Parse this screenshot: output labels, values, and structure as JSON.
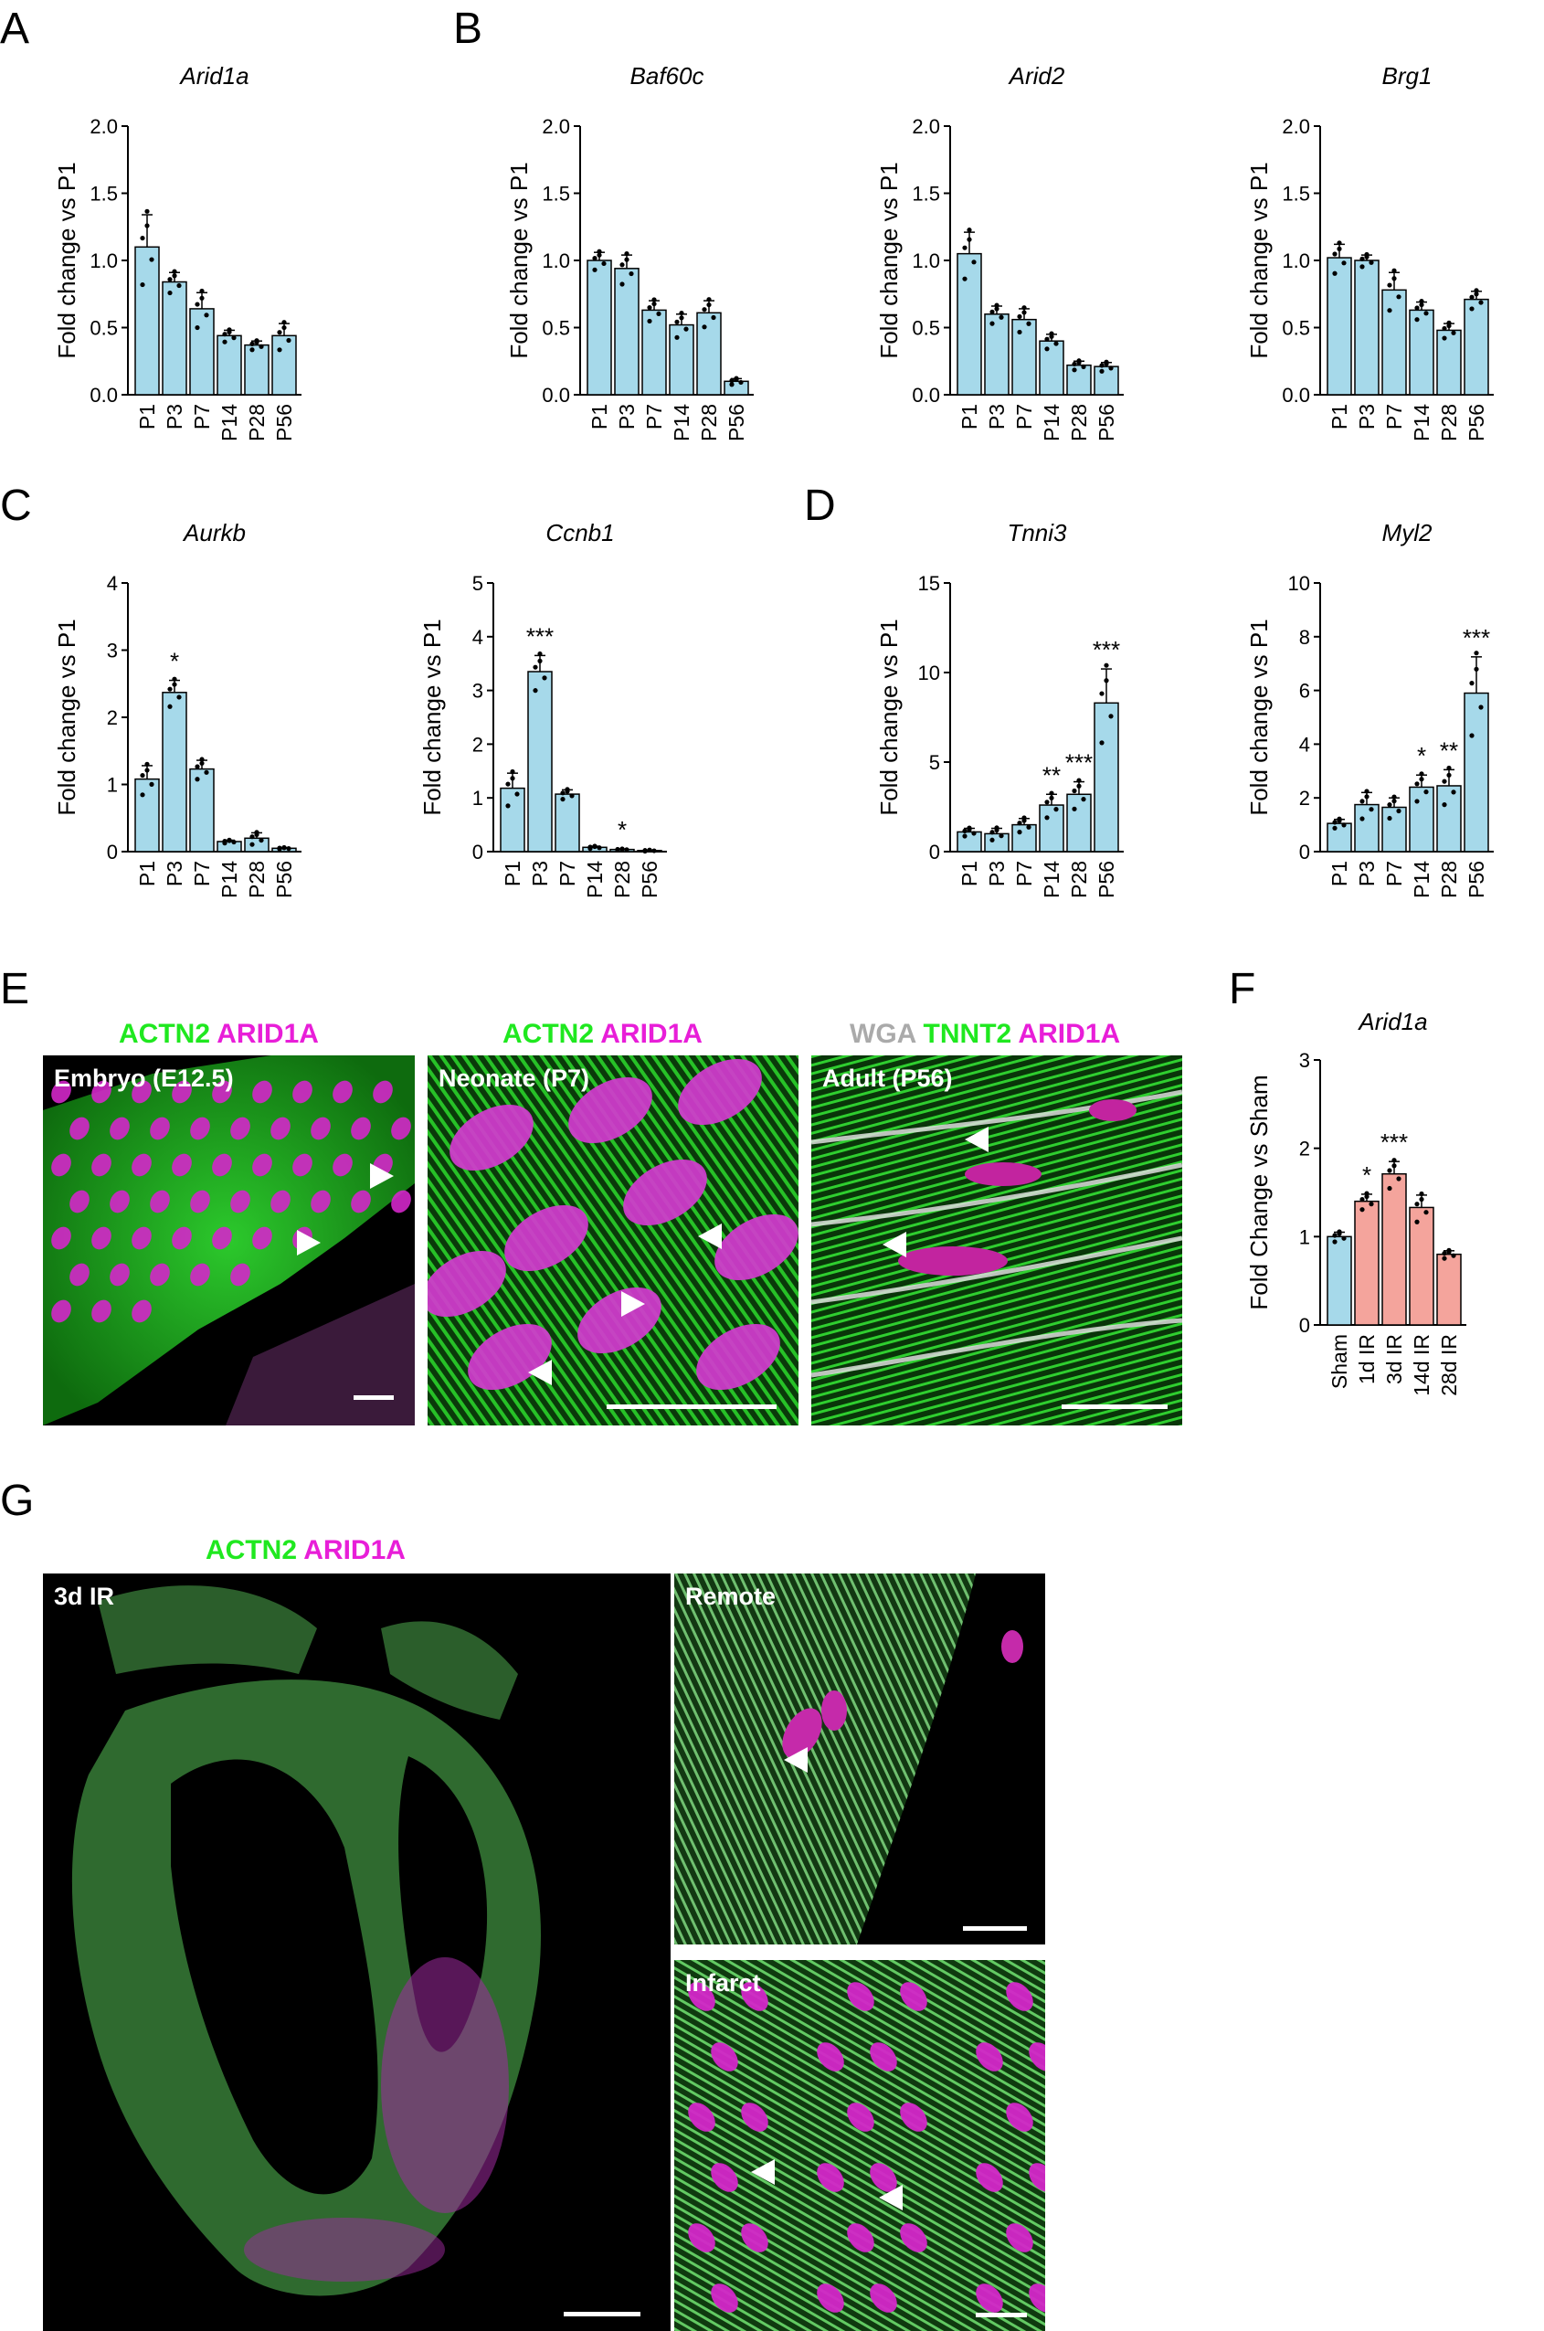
{
  "panel_letters": [
    "A",
    "B",
    "C",
    "D",
    "E",
    "F",
    "G"
  ],
  "colors": {
    "bar_blue": "#a6d9ea",
    "bar_red": "#f4a49c",
    "green": "#1fe81f",
    "magenta": "#e81ed8",
    "gray": "#aaaaaa"
  },
  "chart_data": [
    {
      "id": "A1",
      "type": "bar",
      "title": "Arid1a",
      "ylabel": "Fold change vs P1",
      "categories": [
        "P1",
        "P3",
        "P7",
        "P14",
        "P28",
        "P56"
      ],
      "values": [
        1.1,
        0.84,
        0.64,
        0.44,
        0.37,
        0.44
      ],
      "errors": [
        0.24,
        0.07,
        0.12,
        0.04,
        0.03,
        0.09
      ],
      "ylim": [
        0,
        2
      ],
      "yticks": [
        "0.0",
        "0.5",
        "1.0",
        "1.5",
        "2.0"
      ],
      "significance": [
        "",
        "",
        "",
        "",
        "",
        ""
      ],
      "bar_color": "#a6d9ea"
    },
    {
      "id": "B1",
      "type": "bar",
      "title": "Baf60c",
      "ylabel": "Fold change vs P1",
      "categories": [
        "P1",
        "P3",
        "P7",
        "P14",
        "P28",
        "P56"
      ],
      "values": [
        1.0,
        0.94,
        0.63,
        0.52,
        0.61,
        0.1
      ],
      "errors": [
        0.06,
        0.1,
        0.07,
        0.08,
        0.09,
        0.02
      ],
      "ylim": [
        0,
        2
      ],
      "yticks": [
        "0.0",
        "0.5",
        "1.0",
        "1.5",
        "2.0"
      ],
      "significance": [
        "",
        "",
        "",
        "",
        "",
        ""
      ],
      "bar_color": "#a6d9ea"
    },
    {
      "id": "B2",
      "type": "bar",
      "title": "Arid2",
      "ylabel": "Fold change vs P1",
      "categories": [
        "P1",
        "P3",
        "P7",
        "P14",
        "P28",
        "P56"
      ],
      "values": [
        1.05,
        0.6,
        0.56,
        0.4,
        0.22,
        0.21
      ],
      "errors": [
        0.16,
        0.06,
        0.08,
        0.05,
        0.03,
        0.03
      ],
      "ylim": [
        0,
        2
      ],
      "yticks": [
        "0.0",
        "0.5",
        "1.0",
        "1.5",
        "2.0"
      ],
      "significance": [
        "",
        "",
        "",
        "",
        "",
        ""
      ],
      "bar_color": "#a6d9ea"
    },
    {
      "id": "B3",
      "type": "bar",
      "title": "Brg1",
      "ylabel": "Fold change vs P1",
      "categories": [
        "P1",
        "P3",
        "P7",
        "P14",
        "P28",
        "P56"
      ],
      "values": [
        1.02,
        1.0,
        0.78,
        0.63,
        0.48,
        0.71
      ],
      "errors": [
        0.1,
        0.04,
        0.13,
        0.06,
        0.05,
        0.06
      ],
      "ylim": [
        0,
        2
      ],
      "yticks": [
        "0.0",
        "0.5",
        "1.0",
        "1.5",
        "2.0"
      ],
      "significance": [
        "",
        "",
        "",
        "",
        "",
        ""
      ],
      "bar_color": "#a6d9ea"
    },
    {
      "id": "C1",
      "type": "bar",
      "title": "Aurkb",
      "ylabel": "Fold change vs P1",
      "categories": [
        "P1",
        "P3",
        "P7",
        "P14",
        "P28",
        "P56"
      ],
      "values": [
        1.08,
        2.37,
        1.23,
        0.15,
        0.2,
        0.05
      ],
      "errors": [
        0.2,
        0.18,
        0.13,
        0.02,
        0.08,
        0.01
      ],
      "ylim": [
        0,
        4
      ],
      "yticks": [
        "0",
        "1",
        "2",
        "3",
        "4"
      ],
      "significance": [
        "",
        "*",
        "",
        "",
        "",
        ""
      ],
      "bar_color": "#a6d9ea"
    },
    {
      "id": "C2",
      "type": "bar",
      "title": "Ccnb1",
      "ylabel": "Fold change vs P1",
      "categories": [
        "P1",
        "P3",
        "P7",
        "P14",
        "P28",
        "P56"
      ],
      "values": [
        1.18,
        3.35,
        1.07,
        0.08,
        0.04,
        0.02
      ],
      "errors": [
        0.28,
        0.3,
        0.08,
        0.02,
        0.01,
        0.01
      ],
      "ylim": [
        0,
        5
      ],
      "yticks": [
        "0",
        "1",
        "2",
        "3",
        "4",
        "5"
      ],
      "significance": [
        "",
        "***",
        "",
        "",
        "*",
        ""
      ],
      "bar_color": "#a6d9ea"
    },
    {
      "id": "D1",
      "type": "bar",
      "title": "Tnni3",
      "ylabel": "Fold change vs P1",
      "categories": [
        "P1",
        "P3",
        "P7",
        "P14",
        "P28",
        "P56"
      ],
      "values": [
        1.1,
        1.0,
        1.5,
        2.6,
        3.2,
        8.3
      ],
      "errors": [
        0.2,
        0.3,
        0.35,
        0.6,
        0.7,
        1.9
      ],
      "ylim": [
        0,
        15
      ],
      "yticks": [
        "0",
        "5",
        "10",
        "15"
      ],
      "significance": [
        "",
        "",
        "",
        "**",
        "***",
        "***"
      ],
      "bar_color": "#a6d9ea"
    },
    {
      "id": "D2",
      "type": "bar",
      "title": "Myl2",
      "ylabel": "Fold change vs P1",
      "categories": [
        "P1",
        "P3",
        "P7",
        "P14",
        "P28",
        "P56"
      ],
      "values": [
        1.05,
        1.75,
        1.65,
        2.4,
        2.45,
        5.9
      ],
      "errors": [
        0.15,
        0.45,
        0.35,
        0.45,
        0.6,
        1.35
      ],
      "ylim": [
        0,
        10
      ],
      "yticks": [
        "0",
        "2",
        "4",
        "6",
        "8",
        "10"
      ],
      "significance": [
        "",
        "",
        "",
        "*",
        "**",
        "***"
      ],
      "bar_color": "#a6d9ea"
    },
    {
      "id": "F1",
      "type": "bar",
      "title": "Arid1a",
      "ylabel": "Fold Change vs Sham",
      "categories": [
        "Sham",
        "1d IR",
        "3d IR",
        "14d IR",
        "28d IR"
      ],
      "values": [
        1.0,
        1.4,
        1.71,
        1.33,
        0.8
      ],
      "errors": [
        0.05,
        0.08,
        0.14,
        0.14,
        0.04
      ],
      "ylim": [
        0,
        3
      ],
      "yticks": [
        "0",
        "1",
        "2",
        "3"
      ],
      "significance": [
        "",
        "*",
        "***",
        "",
        ""
      ],
      "bar_colors": [
        "#a6d9ea",
        "#f4a49c",
        "#f4a49c",
        "#f4a49c",
        "#f4a49c"
      ]
    }
  ],
  "panelE": {
    "labels": [
      [
        {
          "t": "ACTN2",
          "c": "#1fe81f"
        },
        {
          "t": " ARID1A",
          "c": "#e81ed8"
        }
      ],
      [
        {
          "t": "ACTN2",
          "c": "#1fe81f"
        },
        {
          "t": " ARID1A",
          "c": "#e81ed8"
        }
      ],
      [
        {
          "t": "WGA",
          "c": "#aaaaaa"
        },
        {
          "t": " TNNT2",
          "c": "#1fe81f"
        },
        {
          "t": " ARID1A",
          "c": "#e81ed8"
        }
      ]
    ],
    "tags": [
      "Embryo (E12.5)",
      "Neonate (P7)",
      "Adult (P56)"
    ]
  },
  "panelG": {
    "label": [
      {
        "t": "ACTN2",
        "c": "#1fe81f"
      },
      {
        "t": " ARID1A",
        "c": "#e81ed8"
      }
    ],
    "tags": [
      "3d IR",
      "Remote",
      "Infarct"
    ]
  }
}
